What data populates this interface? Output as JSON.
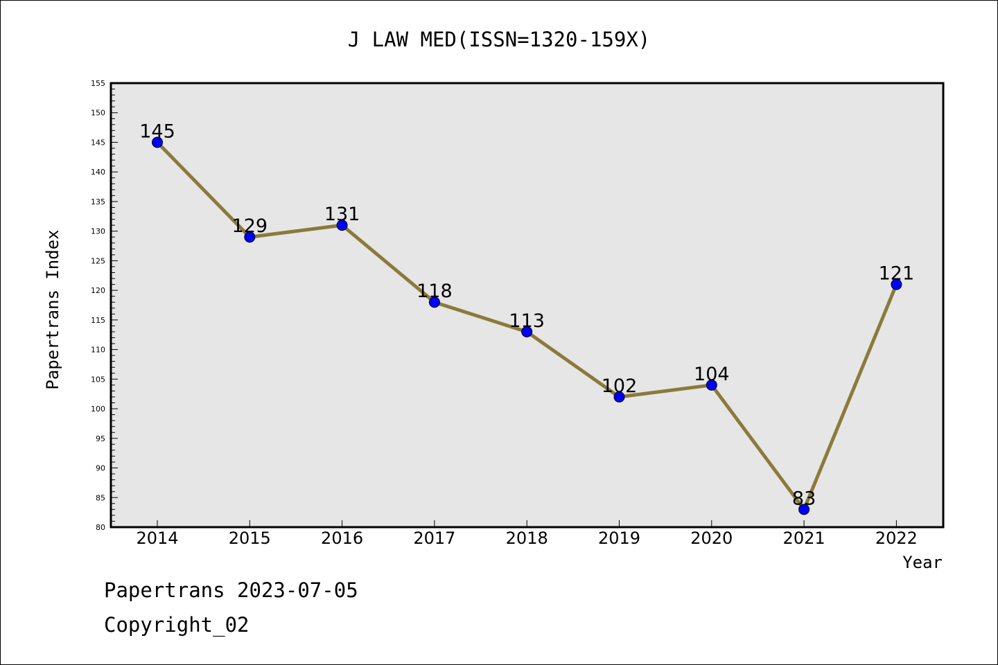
{
  "chart_data": {
    "type": "line",
    "title": "J LAW MED(ISSN=1320-159X)",
    "xlabel": "Year",
    "ylabel": "Papertrans Index",
    "categories": [
      "2014",
      "2015",
      "2016",
      "2017",
      "2018",
      "2019",
      "2020",
      "2021",
      "2022"
    ],
    "series": [
      {
        "values": [
          145,
          129,
          131,
          118,
          113,
          102,
          104,
          83,
          121
        ]
      }
    ],
    "data_labels": [
      "145",
      "129",
      "131",
      "118",
      "113",
      "102",
      "104",
      "83",
      "121"
    ],
    "ylim": [
      80,
      155
    ],
    "yticks": [
      80,
      85,
      90,
      95,
      100,
      105,
      110,
      115,
      120,
      125,
      130,
      135,
      140,
      145,
      150,
      155
    ],
    "y_minor_step": 1,
    "grid": false,
    "colors": {
      "line": "#8b7a3a",
      "marker": "#0000ff",
      "plot_background": "#e6e6e6"
    }
  },
  "footer": {
    "source": "Papertrans 2023-07-05",
    "copyright": "Copyright_02"
  }
}
